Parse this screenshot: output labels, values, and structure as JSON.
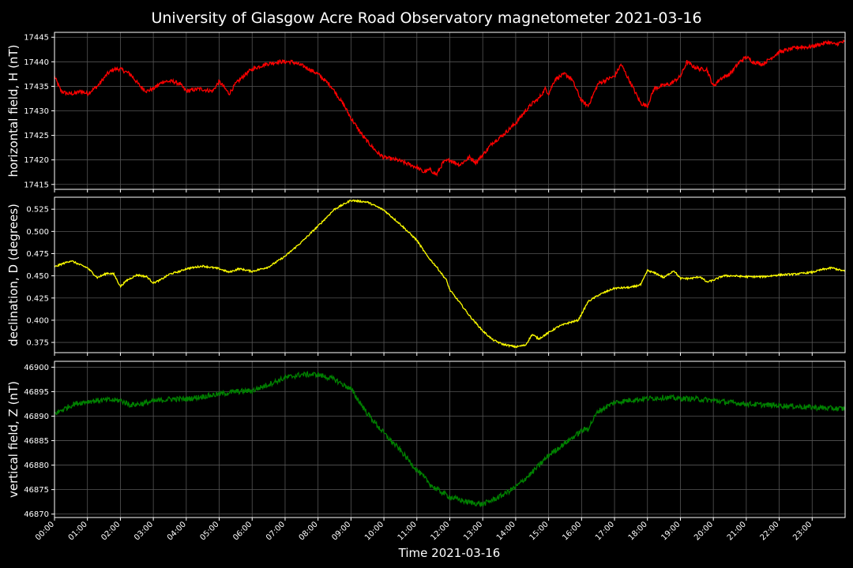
{
  "chart_data": {
    "type": "line",
    "title": "University of Glasgow Acre Road Observatory magnetometer 2021-03-16",
    "xlabel": "Time 2021-03-16",
    "grid": true,
    "background": "#000000",
    "grid_color": "#555555",
    "x_tick_labels": [
      "00:00",
      "01:00",
      "02:00",
      "03:00",
      "04:00",
      "05:00",
      "06:00",
      "07:00",
      "08:00",
      "09:00",
      "10:00",
      "11:00",
      "12:00",
      "13:00",
      "14:00",
      "15:00",
      "16:00",
      "17:00",
      "18:00",
      "19:00",
      "20:00",
      "21:00",
      "22:00",
      "23:00"
    ],
    "xlim_hours": [
      0,
      24
    ],
    "panels": [
      {
        "id": "H",
        "ylabel": "horizontal field, H (nT)",
        "color": "#ff0000",
        "noise": 0.4,
        "ylim": [
          17414,
          17446
        ],
        "yticks": [
          17415,
          17420,
          17425,
          17430,
          17435,
          17440,
          17445
        ],
        "ytick_labels": [
          "17415",
          "17420",
          "17425",
          "17430",
          "17435",
          "17440",
          "17445"
        ],
        "series": {
          "name": "H",
          "x_hours": [
            0.0,
            0.2,
            0.4,
            0.6,
            0.8,
            1.0,
            1.3,
            1.6,
            1.8,
            2.0,
            2.3,
            2.6,
            2.8,
            3.0,
            3.3,
            3.6,
            3.8,
            4.0,
            4.4,
            4.8,
            5.0,
            5.3,
            5.5,
            5.8,
            6.0,
            6.4,
            6.8,
            7.2,
            7.6,
            8.0,
            8.4,
            8.8,
            9.0,
            9.4,
            9.8,
            10.0,
            10.4,
            10.8,
            11.0,
            11.2,
            11.4,
            11.6,
            11.8,
            12.0,
            12.3,
            12.6,
            12.8,
            13.0,
            13.3,
            13.6,
            14.0,
            14.3,
            14.5,
            14.7,
            14.9,
            15.0,
            15.2,
            15.5,
            15.7,
            16.0,
            16.2,
            16.5,
            16.8,
            17.0,
            17.2,
            17.5,
            17.8,
            18.0,
            18.2,
            18.4,
            18.7,
            19.0,
            19.2,
            19.4,
            19.6,
            19.8,
            20.0,
            20.2,
            20.5,
            20.8,
            21.0,
            21.2,
            21.5,
            21.8,
            22.0,
            22.3,
            22.6,
            22.9,
            23.2,
            23.5,
            23.7,
            23.9
          ],
          "values": [
            17437,
            17434,
            17433.5,
            17433.5,
            17434,
            17433.5,
            17435,
            17437.5,
            17438.5,
            17438.5,
            17437.5,
            17435,
            17434,
            17434.5,
            17436,
            17436,
            17435.5,
            17434,
            17434.5,
            17434,
            17436,
            17433.5,
            17435.5,
            17437.5,
            17438.5,
            17439.5,
            17440,
            17440,
            17439,
            17437.5,
            17435,
            17431,
            17428.5,
            17424.5,
            17421.5,
            17420.5,
            17420,
            17419,
            17418.5,
            17417.5,
            17418,
            17417,
            17419.5,
            17420,
            17419,
            17420.5,
            17419.5,
            17421,
            17423.5,
            17425,
            17427.5,
            17430,
            17431.5,
            17432.5,
            17434.5,
            17433.5,
            17436.5,
            17437.5,
            17436.5,
            17432,
            17431,
            17435.5,
            17436.5,
            17437,
            17439.5,
            17435.5,
            17431.5,
            17431,
            17434.5,
            17435,
            17435.5,
            17437,
            17440,
            17439,
            17438.5,
            17438.5,
            17435,
            17436.5,
            17437.5,
            17440,
            17441,
            17440,
            17439.5,
            17441,
            17442,
            17442.5,
            17443,
            17443,
            17443.5,
            17444,
            17443.5,
            17444
          ]
        }
      },
      {
        "id": "D",
        "ylabel": "declination, D (degrees)",
        "color": "#ffff00",
        "noise": 0.001,
        "ylim": [
          0.3635,
          0.5385
        ],
        "yticks": [
          0.375,
          0.4,
          0.425,
          0.45,
          0.475,
          0.5,
          0.525
        ],
        "ytick_labels": [
          "0.375",
          "0.400",
          "0.425",
          "0.450",
          "0.475",
          "0.500",
          "0.525"
        ],
        "series": {
          "name": "D",
          "x_hours": [
            0.0,
            0.2,
            0.5,
            0.8,
            1.0,
            1.3,
            1.6,
            1.8,
            2.0,
            2.2,
            2.5,
            2.8,
            3.0,
            3.2,
            3.5,
            3.8,
            4.0,
            4.5,
            5.0,
            5.3,
            5.6,
            6.0,
            6.5,
            7.0,
            7.5,
            8.0,
            8.5,
            9.0,
            9.5,
            10.0,
            10.5,
            11.0,
            11.3,
            11.6,
            11.9,
            12.0,
            12.3,
            12.6,
            13.0,
            13.3,
            13.6,
            14.0,
            14.3,
            14.5,
            14.7,
            15.0,
            15.3,
            15.6,
            15.9,
            16.2,
            16.5,
            16.8,
            17.0,
            17.5,
            17.8,
            18.0,
            18.3,
            18.5,
            18.8,
            19.0,
            19.3,
            19.6,
            19.8,
            20.0,
            20.3,
            20.6,
            21.0,
            21.5,
            22.0,
            22.5,
            23.0,
            23.3,
            23.6,
            24.0
          ],
          "values": [
            0.46,
            0.463,
            0.467,
            0.462,
            0.459,
            0.448,
            0.453,
            0.452,
            0.438,
            0.445,
            0.451,
            0.449,
            0.442,
            0.445,
            0.452,
            0.455,
            0.458,
            0.461,
            0.458,
            0.454,
            0.458,
            0.455,
            0.46,
            0.472,
            0.488,
            0.506,
            0.525,
            0.535,
            0.533,
            0.524,
            0.508,
            0.49,
            0.473,
            0.46,
            0.445,
            0.434,
            0.42,
            0.405,
            0.388,
            0.378,
            0.373,
            0.37,
            0.372,
            0.384,
            0.379,
            0.386,
            0.393,
            0.397,
            0.4,
            0.421,
            0.428,
            0.433,
            0.436,
            0.437,
            0.44,
            0.456,
            0.452,
            0.448,
            0.456,
            0.447,
            0.447,
            0.449,
            0.443,
            0.445,
            0.45,
            0.45,
            0.449,
            0.449,
            0.451,
            0.452,
            0.454,
            0.457,
            0.459,
            0.455
          ]
        }
      },
      {
        "id": "Z",
        "ylabel": "vertical field, Z (nT)",
        "color": "#008000",
        "noise": 0.55,
        "ylim": [
          46869.3,
          46901.2
        ],
        "yticks": [
          46870,
          46875,
          46880,
          46885,
          46890,
          46895,
          46900
        ],
        "ytick_labels": [
          "46870",
          "46875",
          "46880",
          "46885",
          "46890",
          "46895",
          "46900"
        ],
        "series": {
          "name": "Z",
          "x_hours": [
            0.0,
            0.3,
            0.6,
            1.0,
            1.3,
            1.6,
            2.0,
            2.3,
            2.6,
            3.0,
            3.5,
            4.0,
            4.5,
            5.0,
            5.5,
            6.0,
            6.5,
            7.0,
            7.5,
            8.0,
            8.5,
            9.0,
            9.5,
            10.0,
            10.5,
            11.0,
            11.5,
            12.0,
            12.5,
            13.0,
            13.5,
            14.0,
            14.5,
            15.0,
            15.5,
            16.0,
            16.2,
            16.5,
            17.0,
            17.5,
            18.0,
            18.5,
            19.0,
            19.5,
            20.0,
            20.5,
            21.0,
            21.5,
            22.0,
            22.5,
            23.0,
            23.5,
            24.0
          ],
          "values": [
            46890.5,
            46891.5,
            46892.5,
            46893,
            46893.2,
            46893.3,
            46893.2,
            46892.3,
            46892.5,
            46893,
            46893.5,
            46893.5,
            46894,
            46894.5,
            46895,
            46895.2,
            46896.5,
            46897.8,
            46898.5,
            46898.5,
            46897.5,
            46895.5,
            46890.5,
            46886.5,
            46883,
            46879,
            46875.5,
            46873.5,
            46872.5,
            46872,
            46873.5,
            46875.5,
            46878.5,
            46882,
            46884.5,
            46887,
            46887.5,
            46891,
            46892.8,
            46893.3,
            46893.6,
            46893.8,
            46893.6,
            46893.5,
            46893.2,
            46892.8,
            46892.5,
            46892.3,
            46892.2,
            46892,
            46891.8,
            46891.6,
            46891.5
          ]
        }
      }
    ]
  }
}
